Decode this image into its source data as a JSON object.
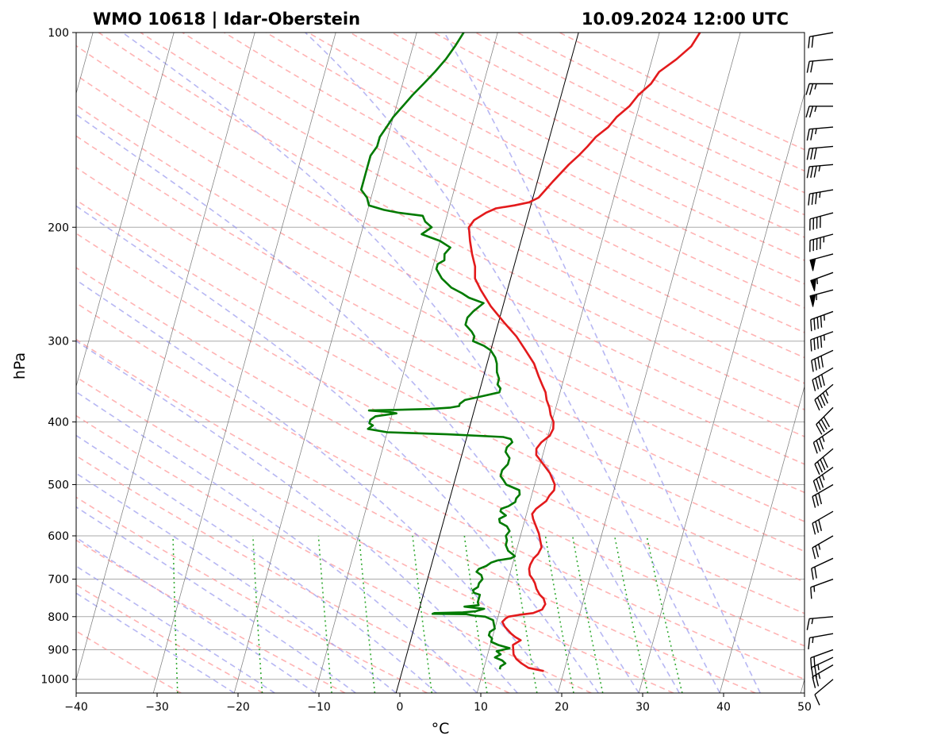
{
  "header": {
    "station": "WMO 10618 | Idar-Oberstein",
    "datetime": "10.09.2024 12:00 UTC"
  },
  "colors": {
    "temperature": "#e31a1c",
    "dewpoint": "#007a00",
    "dry_adiabat": "#ff9999",
    "moist_adiabat": "#9999ee",
    "mixing_ratio": "#33aa33",
    "isotherm": "#777777",
    "isobar": "#aaaaaa",
    "zero_isotherm": "#000000"
  },
  "chart_data": {
    "type": "skewt",
    "title": "WMO 10618 | Idar-Oberstein",
    "subtitle": "10.09.2024 12:00 UTC",
    "xlabel": "°C",
    "ylabel": "hPa",
    "xlim": [
      -40,
      50
    ],
    "ylim": [
      1050,
      100
    ],
    "x_ticks": [
      "−40",
      "−30",
      "−20",
      "−10",
      "0",
      "10",
      "20",
      "30",
      "40",
      "50"
    ],
    "x_tick_values": [
      -40,
      -30,
      -20,
      -10,
      0,
      10,
      20,
      30,
      40,
      50
    ],
    "y_ticks": [
      "100",
      "200",
      "300",
      "400",
      "500",
      "600",
      "700",
      "800",
      "900",
      "1000"
    ],
    "y_tick_values": [
      100,
      200,
      300,
      400,
      500,
      600,
      700,
      800,
      900,
      1000
    ],
    "series": [
      {
        "name": "temperature",
        "points": [
          [
            971,
            17.5
          ],
          [
            960,
            15.5
          ],
          [
            945,
            14.5
          ],
          [
            930,
            13.7
          ],
          [
            915,
            13.2
          ],
          [
            900,
            13.0
          ],
          [
            885,
            12.8
          ],
          [
            870,
            13.6
          ],
          [
            860,
            12.8
          ],
          [
            850,
            12.2
          ],
          [
            830,
            11.2
          ],
          [
            815,
            10.7
          ],
          [
            805,
            11.0
          ],
          [
            800,
            11.3
          ],
          [
            795,
            12.5
          ],
          [
            790,
            14.2
          ],
          [
            780,
            15.2
          ],
          [
            765,
            15.4
          ],
          [
            750,
            15.0
          ],
          [
            740,
            14.4
          ],
          [
            725,
            13.8
          ],
          [
            710,
            13.4
          ],
          [
            700,
            13.0
          ],
          [
            690,
            12.5
          ],
          [
            675,
            12.2
          ],
          [
            665,
            12.2
          ],
          [
            650,
            12.4
          ],
          [
            640,
            12.8
          ],
          [
            625,
            13.0
          ],
          [
            610,
            12.6
          ],
          [
            595,
            12.2
          ],
          [
            580,
            11.6
          ],
          [
            565,
            11.0
          ],
          [
            555,
            10.7
          ],
          [
            545,
            11.0
          ],
          [
            530,
            12.0
          ],
          [
            520,
            12.2
          ],
          [
            510,
            12.6
          ],
          [
            500,
            12.5
          ],
          [
            480,
            11.5
          ],
          [
            460,
            10.0
          ],
          [
            450,
            9.2
          ],
          [
            440,
            9.0
          ],
          [
            430,
            9.4
          ],
          [
            420,
            10.2
          ],
          [
            410,
            10.4
          ],
          [
            400,
            10.2
          ],
          [
            390,
            9.6
          ],
          [
            380,
            9.2
          ],
          [
            370,
            8.6
          ],
          [
            360,
            8.2
          ],
          [
            350,
            7.5
          ],
          [
            340,
            6.8
          ],
          [
            325,
            5.8
          ],
          [
            310,
            4.3
          ],
          [
            295,
            2.7
          ],
          [
            280,
            0.6
          ],
          [
            265,
            -1.5
          ],
          [
            250,
            -3.3
          ],
          [
            240,
            -4.4
          ],
          [
            230,
            -4.8
          ],
          [
            220,
            -5.6
          ],
          [
            210,
            -6.3
          ],
          [
            200,
            -6.9
          ],
          [
            195,
            -6.5
          ],
          [
            190,
            -5.3
          ],
          [
            187,
            -4.2
          ],
          [
            185,
            -2.0
          ],
          [
            183,
            -0.3
          ],
          [
            180,
            0.7
          ],
          [
            175,
            1.3
          ],
          [
            170,
            1.9
          ],
          [
            165,
            2.6
          ],
          [
            160,
            3.3
          ],
          [
            155,
            4.2
          ],
          [
            150,
            5.0
          ],
          [
            145,
            5.7
          ],
          [
            140,
            6.9
          ],
          [
            135,
            7.6
          ],
          [
            130,
            8.8
          ],
          [
            125,
            9.5
          ],
          [
            120,
            10.7
          ],
          [
            115,
            11.3
          ],
          [
            110,
            13.0
          ],
          [
            105,
            14.4
          ],
          [
            100,
            15.0
          ]
        ]
      },
      {
        "name": "dewpoint",
        "points": [
          [
            965,
            12.0
          ],
          [
            955,
            12.0
          ],
          [
            945,
            12.5
          ],
          [
            935,
            12.0
          ],
          [
            925,
            11.0
          ],
          [
            915,
            11.6
          ],
          [
            905,
            11.0
          ],
          [
            895,
            12.5
          ],
          [
            885,
            11.0
          ],
          [
            875,
            10.0
          ],
          [
            865,
            10.0
          ],
          [
            855,
            9.5
          ],
          [
            845,
            9.5
          ],
          [
            835,
            10.0
          ],
          [
            825,
            9.8
          ],
          [
            810,
            9.5
          ],
          [
            800,
            8.4
          ],
          [
            797,
            7.0
          ],
          [
            793,
            6.0
          ],
          [
            792,
            1.8
          ],
          [
            790,
            2.0
          ],
          [
            788,
            5.5
          ],
          [
            785,
            7.0
          ],
          [
            778,
            8.0
          ],
          [
            772,
            5.5
          ],
          [
            768,
            7.2
          ],
          [
            760,
            7.0
          ],
          [
            748,
            7.0
          ],
          [
            740,
            7.0
          ],
          [
            735,
            6.2
          ],
          [
            728,
            6.0
          ],
          [
            720,
            6.5
          ],
          [
            710,
            6.5
          ],
          [
            700,
            6.8
          ],
          [
            690,
            6.5
          ],
          [
            682,
            5.8
          ],
          [
            675,
            6.0
          ],
          [
            668,
            6.8
          ],
          [
            660,
            7.3
          ],
          [
            655,
            8.0
          ],
          [
            650,
            9.6
          ],
          [
            645,
            10.0
          ],
          [
            640,
            9.6
          ],
          [
            633,
            9.0
          ],
          [
            620,
            8.5
          ],
          [
            610,
            8.5
          ],
          [
            600,
            8.2
          ],
          [
            590,
            8.5
          ],
          [
            580,
            8.0
          ],
          [
            572,
            7.0
          ],
          [
            565,
            6.8
          ],
          [
            558,
            7.5
          ],
          [
            550,
            6.7
          ],
          [
            545,
            6.7
          ],
          [
            540,
            7.5
          ],
          [
            532,
            8.2
          ],
          [
            525,
            8.2
          ],
          [
            518,
            8.5
          ],
          [
            510,
            8.3
          ],
          [
            500,
            6.5
          ],
          [
            492,
            6.0
          ],
          [
            485,
            5.5
          ],
          [
            475,
            5.5
          ],
          [
            465,
            6.0
          ],
          [
            455,
            6.0
          ],
          [
            445,
            5.3
          ],
          [
            438,
            5.3
          ],
          [
            430,
            5.8
          ],
          [
            425,
            5.5
          ],
          [
            422,
            4.5
          ],
          [
            418,
            -2.5
          ],
          [
            415,
            -10.0
          ],
          [
            410,
            -12.5
          ],
          [
            405,
            -12.0
          ],
          [
            402,
            -12.5
          ],
          [
            397,
            -12.5
          ],
          [
            392,
            -12.0
          ],
          [
            388,
            -9.5
          ],
          [
            386,
            -10.5
          ],
          [
            384,
            -13.0
          ],
          [
            382,
            -5.5
          ],
          [
            380,
            -3.0
          ],
          [
            378,
            -2.0
          ],
          [
            375,
            -2.0
          ],
          [
            370,
            -1.5
          ],
          [
            365,
            0.5
          ],
          [
            360,
            2.5
          ],
          [
            355,
            2.5
          ],
          [
            350,
            2.0
          ],
          [
            343,
            2.0
          ],
          [
            335,
            1.5
          ],
          [
            325,
            1.2
          ],
          [
            318,
            0.8
          ],
          [
            310,
            0.0
          ],
          [
            305,
            -1.0
          ],
          [
            300,
            -2.5
          ],
          [
            295,
            -2.5
          ],
          [
            290,
            -3.0
          ],
          [
            283,
            -4.0
          ],
          [
            276,
            -4.0
          ],
          [
            270,
            -3.5
          ],
          [
            262,
            -2.5
          ],
          [
            257,
            -4.5
          ],
          [
            253,
            -5.5
          ],
          [
            248,
            -7.0
          ],
          [
            240,
            -8.5
          ],
          [
            232,
            -9.5
          ],
          [
            228,
            -9.5
          ],
          [
            225,
            -8.8
          ],
          [
            220,
            -9.0
          ],
          [
            215,
            -8.5
          ],
          [
            210,
            -10.0
          ],
          [
            205,
            -12.5
          ],
          [
            200,
            -11.5
          ],
          [
            196,
            -12.5
          ],
          [
            192,
            -13.0
          ],
          [
            190,
            -16.0
          ],
          [
            188,
            -18.0
          ],
          [
            185,
            -20.0
          ],
          [
            180,
            -20.5
          ],
          [
            175,
            -21.5
          ],
          [
            170,
            -21.5
          ],
          [
            165,
            -21.5
          ],
          [
            160,
            -21.5
          ],
          [
            155,
            -21.5
          ],
          [
            150,
            -21.0
          ],
          [
            145,
            -21.0
          ],
          [
            140,
            -20.5
          ],
          [
            135,
            -20.0
          ],
          [
            130,
            -19.2
          ],
          [
            125,
            -18.4
          ],
          [
            120,
            -17.4
          ],
          [
            115,
            -16.4
          ],
          [
            110,
            -15.5
          ],
          [
            105,
            -14.8
          ],
          [
            100,
            -14.2
          ]
        ]
      }
    ],
    "wind_barbs": [
      {
        "p": 1000,
        "dir": 230,
        "spd": 10
      },
      {
        "p": 950,
        "dir": 240,
        "spd": 25
      },
      {
        "p": 925,
        "dir": 245,
        "spd": 25
      },
      {
        "p": 900,
        "dir": 250,
        "spd": 20
      },
      {
        "p": 850,
        "dir": 260,
        "spd": 15
      },
      {
        "p": 800,
        "dir": 265,
        "spd": 15
      },
      {
        "p": 700,
        "dir": 250,
        "spd": 15
      },
      {
        "p": 650,
        "dir": 245,
        "spd": 20
      },
      {
        "p": 600,
        "dir": 240,
        "spd": 25
      },
      {
        "p": 550,
        "dir": 240,
        "spd": 30
      },
      {
        "p": 500,
        "dir": 240,
        "spd": 30
      },
      {
        "p": 470,
        "dir": 235,
        "spd": 35
      },
      {
        "p": 440,
        "dir": 230,
        "spd": 40
      },
      {
        "p": 410,
        "dir": 235,
        "spd": 35
      },
      {
        "p": 380,
        "dir": 225,
        "spd": 40
      },
      {
        "p": 350,
        "dir": 230,
        "spd": 45
      },
      {
        "p": 330,
        "dir": 240,
        "spd": 40
      },
      {
        "p": 310,
        "dir": 245,
        "spd": 40
      },
      {
        "p": 290,
        "dir": 250,
        "spd": 45
      },
      {
        "p": 270,
        "dir": 250,
        "spd": 45
      },
      {
        "p": 250,
        "dir": 255,
        "spd": 55
      },
      {
        "p": 235,
        "dir": 250,
        "spd": 55
      },
      {
        "p": 220,
        "dir": 255,
        "spd": 50
      },
      {
        "p": 205,
        "dir": 255,
        "spd": 45
      },
      {
        "p": 190,
        "dir": 255,
        "spd": 40
      },
      {
        "p": 175,
        "dir": 260,
        "spd": 35
      },
      {
        "p": 160,
        "dir": 265,
        "spd": 35
      },
      {
        "p": 150,
        "dir": 265,
        "spd": 30
      },
      {
        "p": 140,
        "dir": 265,
        "spd": 25
      },
      {
        "p": 130,
        "dir": 270,
        "spd": 25
      },
      {
        "p": 120,
        "dir": 270,
        "spd": 25
      },
      {
        "p": 110,
        "dir": 265,
        "spd": 20
      },
      {
        "p": 100,
        "dir": 260,
        "spd": 20
      }
    ]
  }
}
